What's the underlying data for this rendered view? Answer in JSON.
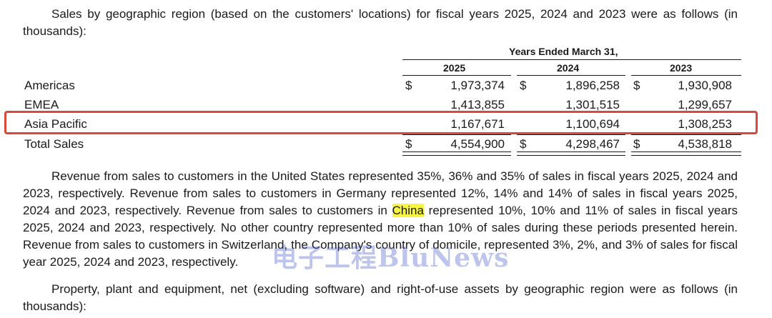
{
  "intro": "Sales by geographic region (based on the customers' locations) for fiscal years 2025, 2024 and 2023 were as follows (in thousands):",
  "table": {
    "period_header": "Years Ended March 31,",
    "years": [
      "2025",
      "2024",
      "2023"
    ],
    "currency": "$",
    "rows": [
      {
        "label": "Americas",
        "values": [
          "1,973,374",
          "1,896,258",
          "1,930,908"
        ]
      },
      {
        "label": "EMEA",
        "values": [
          "1,413,855",
          "1,301,515",
          "1,299,657"
        ]
      },
      {
        "label": "Asia Pacific",
        "values": [
          "1,167,671",
          "1,100,694",
          "1,308,253"
        ]
      },
      {
        "label": "Total Sales",
        "values": [
          "4,554,900",
          "4,298,467",
          "4,538,818"
        ]
      }
    ]
  },
  "revenue_paragraph": {
    "before_highlight": "Revenue from sales to customers in the United States represented 35%, 36% and 35% of sales in fiscal years 2025, 2024 and 2023, respectively. Revenue from sales to customers in Germany represented 12%, 14% and 14% of sales in fiscal years 2025, 2024 and 2023, respectively. Revenue from sales to customers in ",
    "highlight": "China",
    "after_highlight": " represented 10%, 10% and 11% of sales in fiscal years 2025, 2024 and 2023, respectively. No other country represented more than 10% of sales during these periods presented herein. Revenue from sales to customers in Switzerland, the Company's country of domicile, represented 3%, 2%, and 3% of sales for fiscal year 2025, 2024 and 2023, respectively."
  },
  "ppe_paragraph": "Property, plant and equipment, net (excluding software) and right-of-use assets by geographic region were as follows (in thousands):",
  "watermark": "电子工程BluNews",
  "colors": {
    "highlight_box": "#d9483b",
    "text_highlight": "#f7f542",
    "watermark": "#465ac8"
  }
}
